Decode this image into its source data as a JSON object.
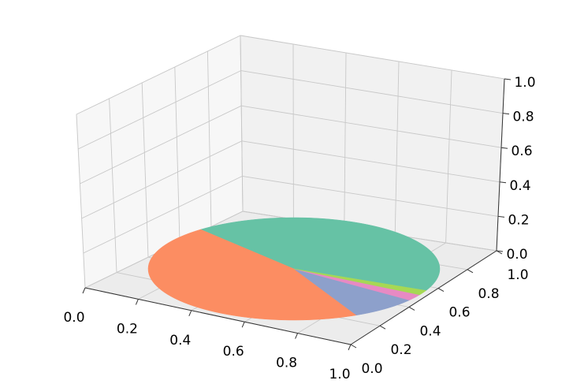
{
  "chart_data": {
    "type": "pie",
    "values": [
      43,
      46,
      7.5,
      2,
      1.5
    ],
    "colors": [
      "#66c2a5",
      "#fc8d62",
      "#8da0cb",
      "#e78ac3",
      "#a6d854"
    ],
    "startangle": -25,
    "xlim": [
      0,
      1
    ],
    "ylim": [
      0,
      1
    ],
    "zlim": [
      0,
      1
    ],
    "xticks": [
      {
        "value": 0,
        "label": "0.0"
      },
      0.2,
      0.4,
      0.6,
      0.8,
      {
        "value": 1,
        "label": "1.0"
      }
    ],
    "yticks": [
      {
        "value": 0,
        "label": "0.0"
      },
      0.2,
      0.4,
      0.6,
      0.8,
      {
        "value": 1,
        "label": "1.0"
      }
    ],
    "zticks": [
      {
        "value": 0,
        "label": "0.0"
      },
      0.2,
      0.4,
      0.6,
      0.8,
      {
        "value": 1,
        "label": "1.0"
      }
    ],
    "grid": true
  }
}
